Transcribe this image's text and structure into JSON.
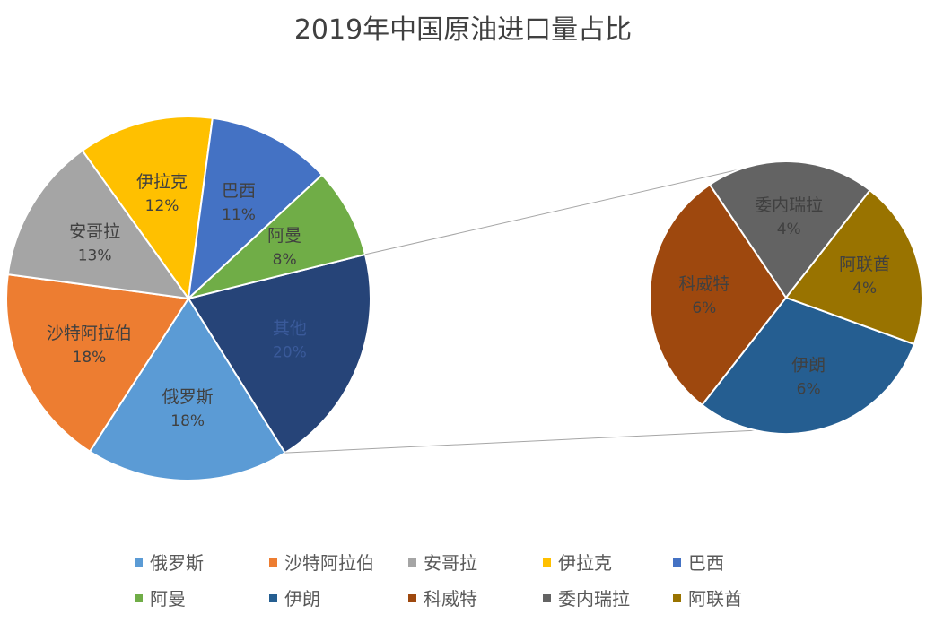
{
  "title": "2019年中国原油进口量占比",
  "chart_data": {
    "type": "pie",
    "subtype": "pie-of-pie",
    "title": "2019年中国原油进口量占比",
    "slices": [
      {
        "name": "俄罗斯",
        "label": "18%",
        "value": 18,
        "color": "#5B9BD5"
      },
      {
        "name": "沙特阿拉伯",
        "label": "18%",
        "value": 18,
        "color": "#ED7D31"
      },
      {
        "name": "安哥拉",
        "label": "13%",
        "value": 13,
        "color": "#A5A5A5"
      },
      {
        "name": "伊拉克",
        "label": "12%",
        "value": 12,
        "color": "#FFC000"
      },
      {
        "name": "巴西",
        "label": "11%",
        "value": 11,
        "color": "#4472C4"
      },
      {
        "name": "阿曼",
        "label": "8%",
        "value": 8,
        "color": "#70AD47"
      },
      {
        "name": "伊朗",
        "label": "6%",
        "value": 6,
        "color": "#255E91"
      },
      {
        "name": "科威特",
        "label": "6%",
        "value": 6,
        "color": "#9E480E"
      },
      {
        "name": "委内瑞拉",
        "label": "4%",
        "value": 4,
        "color": "#636363"
      },
      {
        "name": "阿联酋",
        "label": "4%",
        "value": 4,
        "color": "#997300"
      }
    ],
    "main_slices": [
      "俄罗斯",
      "沙特阿拉伯",
      "安哥拉",
      "伊拉克",
      "巴西",
      "阿曼"
    ],
    "other_slice": {
      "label": "其他",
      "value": 20,
      "color": "#264478"
    },
    "secondary_slices": [
      "伊朗",
      "科威特",
      "委内瑞拉",
      "阿联酋"
    ],
    "legend_position": "bottom"
  }
}
